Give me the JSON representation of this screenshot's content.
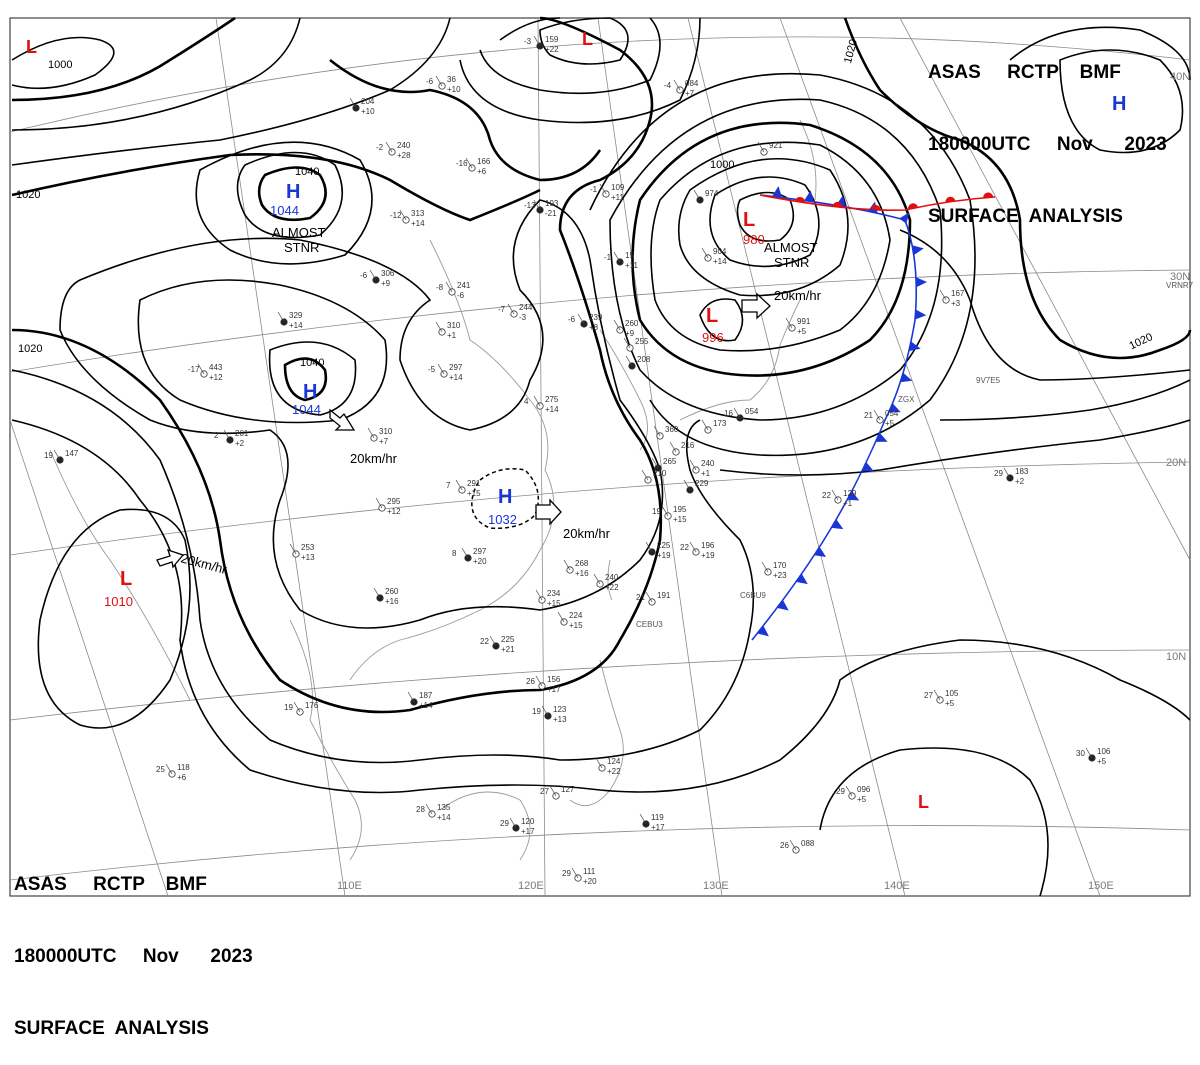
{
  "header": {
    "line1": "ASAS     RCTP    BMF",
    "line2": "180000UTC     Nov      2023",
    "line3": "SURFACE  ANALYSIS"
  },
  "colors": {
    "high": "#1a37d6",
    "low": "#e01010",
    "isobar": "#000000",
    "grid": "#8a8a8a",
    "coast": "#9a9a9a",
    "cold_front": "#1a37d6",
    "warm_front": "#e01010"
  },
  "isobar_labels": {
    "i1000_nw": "1000",
    "i1020_nw": "1020",
    "i1040_top": "1040",
    "i1040_mid": "1040",
    "i1020_left": "1020",
    "i1000_ne": "1000",
    "i1020_ne": "1020",
    "i1020_east": "1020"
  },
  "pressure_systems": [
    {
      "id": "l-nw",
      "type": "L",
      "value": ""
    },
    {
      "id": "l-north",
      "type": "L",
      "value": ""
    },
    {
      "id": "h-ne",
      "type": "H",
      "value": ""
    },
    {
      "id": "h-mongolia",
      "type": "H",
      "value": "1044"
    },
    {
      "id": "h-central",
      "type": "H",
      "value": "1044"
    },
    {
      "id": "h-china",
      "type": "H",
      "value": "1032"
    },
    {
      "id": "l-kamchatka",
      "type": "L",
      "value": "980"
    },
    {
      "id": "l-japan",
      "type": "L",
      "value": "996"
    },
    {
      "id": "l-west",
      "type": "L",
      "value": "1010"
    },
    {
      "id": "l-southeast",
      "type": "L",
      "value": ""
    }
  ],
  "movement_notes": {
    "stnr_mongolia": [
      "ALMOST",
      "STNR"
    ],
    "stnr_kamchatka": [
      "ALMOST",
      "STNR"
    ],
    "speed_central_h": "20km/hr",
    "speed_china_h": "20km/hr",
    "speed_west_l": "20km/hr",
    "speed_japan_l": "20km/hr"
  },
  "longitude_labels": [
    "110E",
    "120E",
    "130E",
    "140E",
    "150E"
  ],
  "latitude_labels": [
    "40N",
    "30N",
    "20N",
    "10N"
  ],
  "stations": [
    {
      "a": "-3",
      "b": "159",
      "c": "+22"
    },
    {
      "a": "-6",
      "b": "36",
      "c": "+10"
    },
    {
      "a": "-4",
      "b": "084",
      "c": "+7"
    },
    {
      "a": "",
      "b": "204",
      "c": "+10"
    },
    {
      "a": "-2",
      "b": "240",
      "c": "+28"
    },
    {
      "a": "-16",
      "b": "166",
      "c": "+6"
    },
    {
      "a": "-13",
      "b": "193",
      "c": "-21"
    },
    {
      "a": "-1",
      "b": "109",
      "c": "+11"
    },
    {
      "a": "-12",
      "b": "313",
      "c": "+14"
    },
    {
      "a": "-6",
      "b": "306",
      "c": "+9"
    },
    {
      "a": "-8",
      "b": "241",
      "c": "-6"
    },
    {
      "a": "-7",
      "b": "244",
      "c": "-3"
    },
    {
      "a": "-6",
      "b": "239",
      "c": "+8"
    },
    {
      "a": "",
      "b": "310",
      "c": "+1"
    },
    {
      "a": "-17",
      "b": "443",
      "c": "+12"
    },
    {
      "a": "",
      "b": "329",
      "c": "+14"
    },
    {
      "a": "-5",
      "b": "297",
      "c": "+14"
    },
    {
      "a": "4",
      "b": "275",
      "c": "+14"
    },
    {
      "a": "2",
      "b": "201",
      "c": "+2"
    },
    {
      "a": "",
      "b": "310",
      "c": "+7"
    },
    {
      "a": "7",
      "b": "291",
      "c": "+15"
    },
    {
      "a": "19",
      "b": "147",
      "c": ""
    },
    {
      "a": "",
      "b": "295",
      "c": "+12"
    },
    {
      "a": "",
      "b": "253",
      "c": "+13"
    },
    {
      "a": "8",
      "b": "297",
      "c": "+20"
    },
    {
      "a": "",
      "b": "268",
      "c": "+16"
    },
    {
      "a": "",
      "b": "240",
      "c": "+22"
    },
    {
      "a": "",
      "b": "260",
      "c": "+16"
    },
    {
      "a": "",
      "b": "234",
      "c": "+15"
    },
    {
      "a": "",
      "b": "224",
      "c": "+15"
    },
    {
      "a": "22",
      "b": "225",
      "c": "+21"
    },
    {
      "a": "21",
      "b": "191",
      "c": ""
    },
    {
      "a": "19",
      "b": "195",
      "c": "+15"
    },
    {
      "a": "",
      "b": "225",
      "c": "+19"
    },
    {
      "a": "22",
      "b": "196",
      "c": "+19"
    },
    {
      "a": "",
      "b": "170",
      "c": "+23"
    },
    {
      "a": "",
      "b": "187",
      "c": "+14"
    },
    {
      "a": "19",
      "b": "176",
      "c": ""
    },
    {
      "a": "26",
      "b": "156",
      "c": "+17"
    },
    {
      "a": "19",
      "b": "123",
      "c": "+13"
    },
    {
      "a": "25",
      "b": "118",
      "c": "+6"
    },
    {
      "a": "28",
      "b": "135",
      "c": "+14"
    },
    {
      "a": "29",
      "b": "120",
      "c": "+17"
    },
    {
      "a": "27",
      "b": "127",
      "c": ""
    },
    {
      "a": "",
      "b": "124",
      "c": "+22"
    },
    {
      "a": "",
      "b": "119",
      "c": "+17"
    },
    {
      "a": "29",
      "b": "111",
      "c": "+20"
    },
    {
      "a": "27",
      "b": "105",
      "c": "+5"
    },
    {
      "a": "30",
      "b": "106",
      "c": "+5"
    },
    {
      "a": "29",
      "b": "096",
      "c": "+5"
    },
    {
      "a": "26",
      "b": "088",
      "c": ""
    },
    {
      "a": "29",
      "b": "183",
      "c": "+2"
    },
    {
      "a": "21",
      "b": "054",
      "c": "+5"
    },
    {
      "a": "22",
      "b": "129",
      "c": "+1"
    },
    {
      "a": "16",
      "b": "054",
      "c": ""
    },
    {
      "a": "",
      "b": "167",
      "c": "+3"
    },
    {
      "a": "",
      "b": "904",
      "c": "+14"
    },
    {
      "a": "",
      "b": "974",
      "c": ""
    },
    {
      "a": "",
      "b": "921",
      "c": ""
    },
    {
      "a": "",
      "b": "991",
      "c": "+5"
    },
    {
      "a": "-1",
      "b": "15",
      "c": "+11"
    },
    {
      "a": "",
      "b": "260",
      "c": "+9"
    },
    {
      "a": "",
      "b": "255",
      "c": ""
    },
    {
      "a": "",
      "b": "208",
      "c": ""
    },
    {
      "a": "",
      "b": "360",
      "c": ""
    },
    {
      "a": "",
      "b": "216",
      "c": ""
    },
    {
      "a": "",
      "b": "265",
      "c": ""
    },
    {
      "a": "",
      "b": "240",
      "c": "+1"
    },
    {
      "a": "",
      "b": "210",
      "c": ""
    },
    {
      "a": "",
      "b": "229",
      "c": ""
    },
    {
      "a": "",
      "b": "173",
      "c": ""
    }
  ],
  "place_codes": [
    "CEBU3",
    "C6BU9",
    "VRNR7",
    "9V7E5",
    "ZGX"
  ]
}
